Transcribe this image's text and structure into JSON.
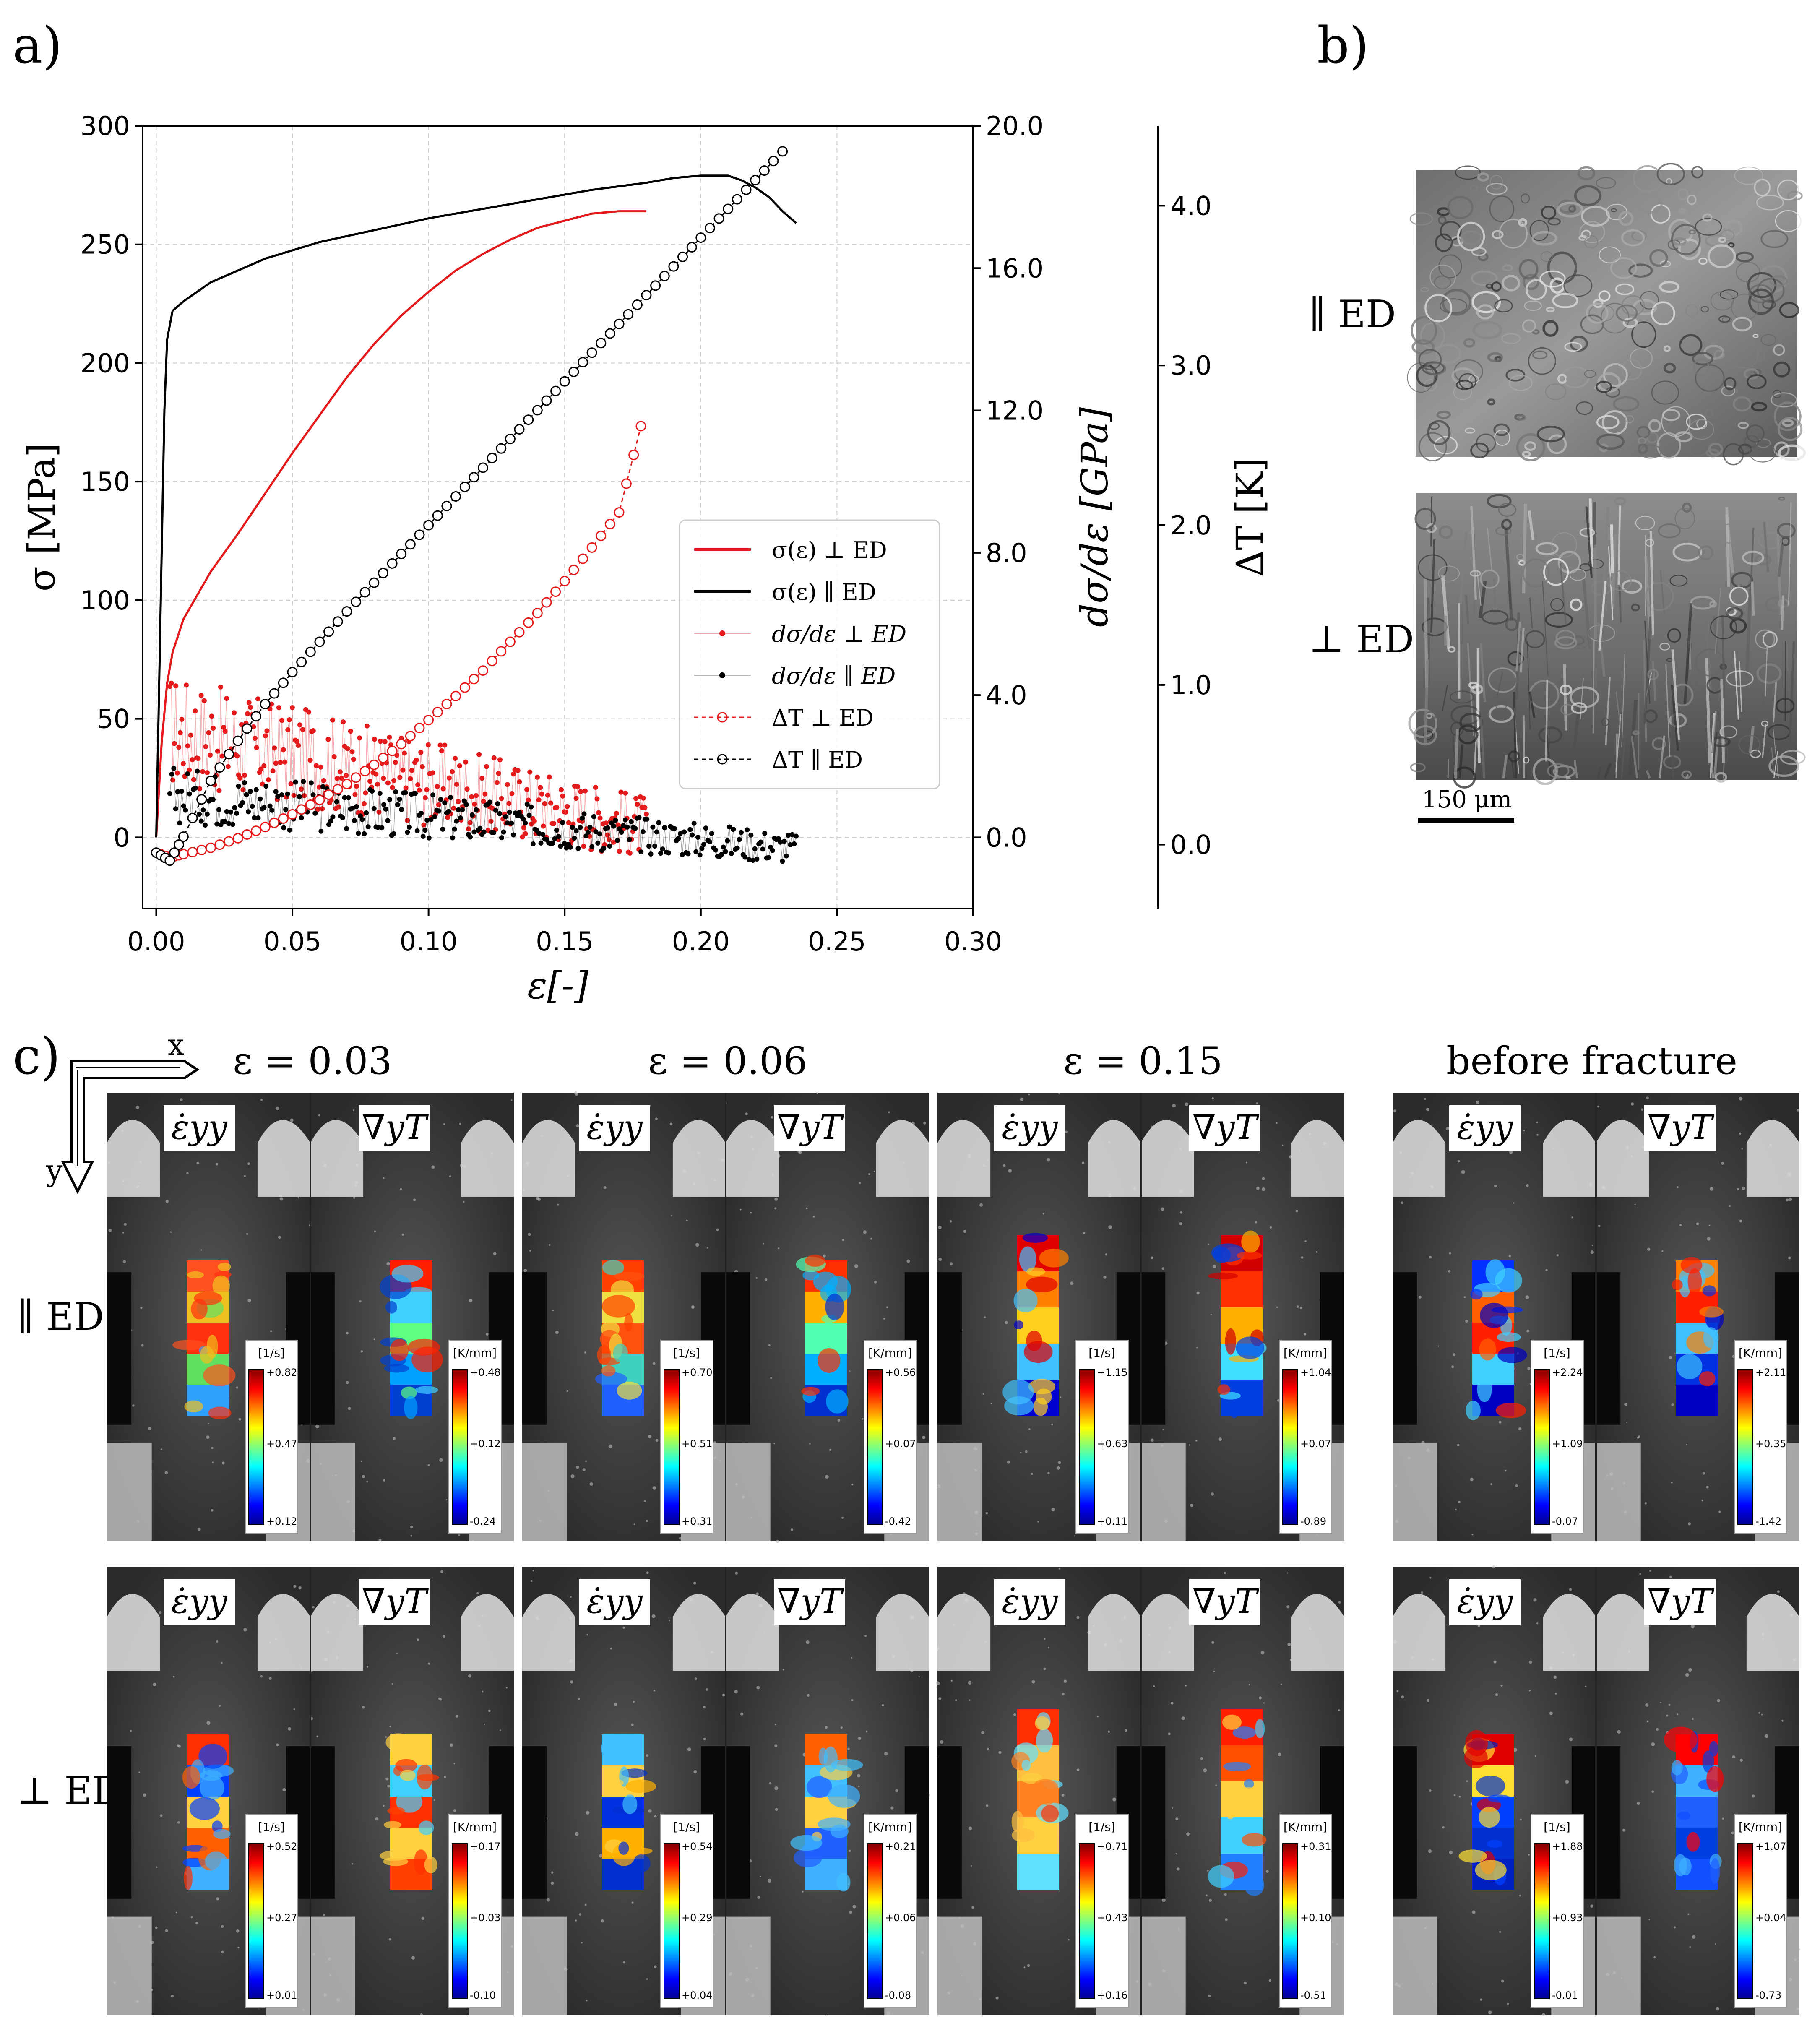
{
  "panels": {
    "a": "a)",
    "b": "b)",
    "c": "c)"
  },
  "chart_data": {
    "type": "line",
    "xlabel": "ε[-]",
    "ylabel": "σ [MPa]",
    "y2label": "dσ/dε  [GPa]",
    "y3label": "ΔT [K]",
    "xlim": [
      -0.005,
      0.3
    ],
    "ylim": [
      -30,
      300
    ],
    "y2lim": [
      -2,
      20
    ],
    "y3lim": [
      -0.4,
      4.5
    ],
    "grid": true,
    "legend_location": "center-right",
    "x_ticks": [
      "0.00",
      "0.05",
      "0.10",
      "0.15",
      "0.20",
      "0.25",
      "0.30"
    ],
    "y_ticks": [
      "0",
      "50",
      "100",
      "150",
      "200",
      "250",
      "300"
    ],
    "y2_ticks": [
      "0.0",
      "4.0",
      "8.0",
      "12.0",
      "16.0",
      "20.0"
    ],
    "y3_ticks": [
      "0.0",
      "1.0",
      "2.0",
      "3.0",
      "4.0"
    ],
    "legend": [
      "σ(ε) ⊥ ED",
      "σ(ε) ∥ ED",
      "dσ/dε ⊥ ED",
      "dσ/dε ∥ ED",
      "ΔT ⊥ ED",
      "ΔT ∥ ED"
    ],
    "series": [
      {
        "name": "σ(ε) ⊥ ED",
        "axis": "sigma",
        "color": "#e41a1c",
        "x": [
          0.0,
          0.002,
          0.004,
          0.006,
          0.01,
          0.02,
          0.03,
          0.04,
          0.05,
          0.06,
          0.07,
          0.08,
          0.09,
          0.1,
          0.11,
          0.12,
          0.13,
          0.14,
          0.15,
          0.16,
          0.17,
          0.18
        ],
        "y": [
          0,
          40,
          65,
          78,
          92,
          112,
          128,
          145,
          162,
          178,
          194,
          208,
          220,
          230,
          239,
          246,
          252,
          257,
          260,
          263,
          264,
          264
        ]
      },
      {
        "name": "σ(ε) ∥ ED",
        "axis": "sigma",
        "color": "#000000",
        "x": [
          0.0,
          0.002,
          0.003,
          0.004,
          0.006,
          0.01,
          0.02,
          0.04,
          0.06,
          0.08,
          0.1,
          0.12,
          0.14,
          0.16,
          0.18,
          0.19,
          0.2,
          0.21,
          0.215,
          0.22,
          0.225,
          0.23,
          0.235
        ],
        "y": [
          0,
          120,
          180,
          210,
          222,
          226,
          234,
          244,
          251,
          256,
          261,
          265,
          269,
          273,
          276,
          278,
          279,
          279,
          277,
          274,
          270,
          264,
          259
        ]
      },
      {
        "name": "ΔT ⊥ ED",
        "axis": "dT",
        "color": "#e41a1c",
        "x": [
          0.0,
          0.005,
          0.01,
          0.02,
          0.03,
          0.04,
          0.05,
          0.06,
          0.07,
          0.08,
          0.09,
          0.1,
          0.11,
          0.12,
          0.13,
          0.14,
          0.15,
          0.16,
          0.17,
          0.178
        ],
        "y": [
          -0.05,
          -0.08,
          -0.06,
          -0.02,
          0.04,
          0.11,
          0.19,
          0.28,
          0.38,
          0.5,
          0.63,
          0.78,
          0.93,
          1.09,
          1.27,
          1.45,
          1.65,
          1.86,
          2.08,
          2.62
        ]
      },
      {
        "name": "ΔT ∥ ED",
        "axis": "dT",
        "color": "#000000",
        "x": [
          0.0,
          0.005,
          0.01,
          0.02,
          0.03,
          0.04,
          0.05,
          0.06,
          0.07,
          0.08,
          0.09,
          0.1,
          0.11,
          0.12,
          0.13,
          0.14,
          0.15,
          0.16,
          0.17,
          0.18,
          0.19,
          0.2,
          0.21,
          0.22,
          0.23
        ],
        "y": [
          -0.05,
          -0.1,
          0.05,
          0.4,
          0.65,
          0.88,
          1.08,
          1.27,
          1.46,
          1.64,
          1.82,
          2.0,
          2.18,
          2.36,
          2.54,
          2.72,
          2.9,
          3.08,
          3.26,
          3.44,
          3.62,
          3.8,
          3.98,
          4.16,
          4.34
        ]
      },
      {
        "name": "dσ/dε ⊥ ED",
        "axis": "ddg",
        "color": "#e41a1c",
        "style": "noisy-scatter",
        "x_range": [
          0.005,
          0.18
        ],
        "y_mean_start": 3.0,
        "y_mean_end": 0.3,
        "y_spread": 1.6
      },
      {
        "name": "dσ/dε ∥ ED",
        "axis": "ddg",
        "color": "#000000",
        "style": "noisy-scatter",
        "x_range": [
          0.005,
          0.235
        ],
        "y_mean_start": 1.2,
        "y_mean_end": -0.3,
        "y_spread": 0.8
      }
    ]
  },
  "sem_labels": {
    "par": "∥ ED",
    "perp": "⊥ ED",
    "scale_bar": "150 μm"
  },
  "dic": {
    "axes": {
      "x": "x",
      "y": "y"
    },
    "row_labels": [
      "∥ ED",
      "⊥ ED"
    ],
    "columns": [
      "ε = 0.03",
      "ε = 0.06",
      "ε = 0.15",
      "before fracture"
    ],
    "field_labels": {
      "strain_rate": "ε̇yy",
      "gradient": "∇yT"
    },
    "units": {
      "strain_rate": "[1/s]",
      "gradient": "[K/mm]"
    },
    "scales": [
      [
        {
          "rate": [
            "+0.82",
            "+0.47",
            "+0.12"
          ],
          "grad": [
            "+0.48",
            "+0.12",
            "-0.24"
          ]
        },
        {
          "rate": [
            "+0.70",
            "+0.51",
            "+0.31"
          ],
          "grad": [
            "+0.56",
            "+0.07",
            "-0.42"
          ]
        },
        {
          "rate": [
            "+1.15",
            "+0.63",
            "+0.11"
          ],
          "grad": [
            "+1.04",
            "+0.07",
            "-0.89"
          ]
        },
        {
          "rate": [
            "+2.24",
            "+1.09",
            "-0.07"
          ],
          "grad": [
            "+2.11",
            "+0.35",
            "-1.42"
          ]
        }
      ],
      [
        {
          "rate": [
            "+0.52",
            "+0.27",
            "+0.01"
          ],
          "grad": [
            "+0.17",
            "+0.03",
            "-0.10"
          ]
        },
        {
          "rate": [
            "+0.54",
            "+0.29",
            "+0.04"
          ],
          "grad": [
            "+0.21",
            "+0.06",
            "-0.08"
          ]
        },
        {
          "rate": [
            "+0.71",
            "+0.43",
            "+0.16"
          ],
          "grad": [
            "+0.31",
            "+0.10",
            "-0.51"
          ]
        },
        {
          "rate": [
            "+1.88",
            "+0.93",
            "-0.01"
          ],
          "grad": [
            "+1.07",
            "+0.04",
            "-0.73"
          ]
        }
      ]
    ]
  }
}
